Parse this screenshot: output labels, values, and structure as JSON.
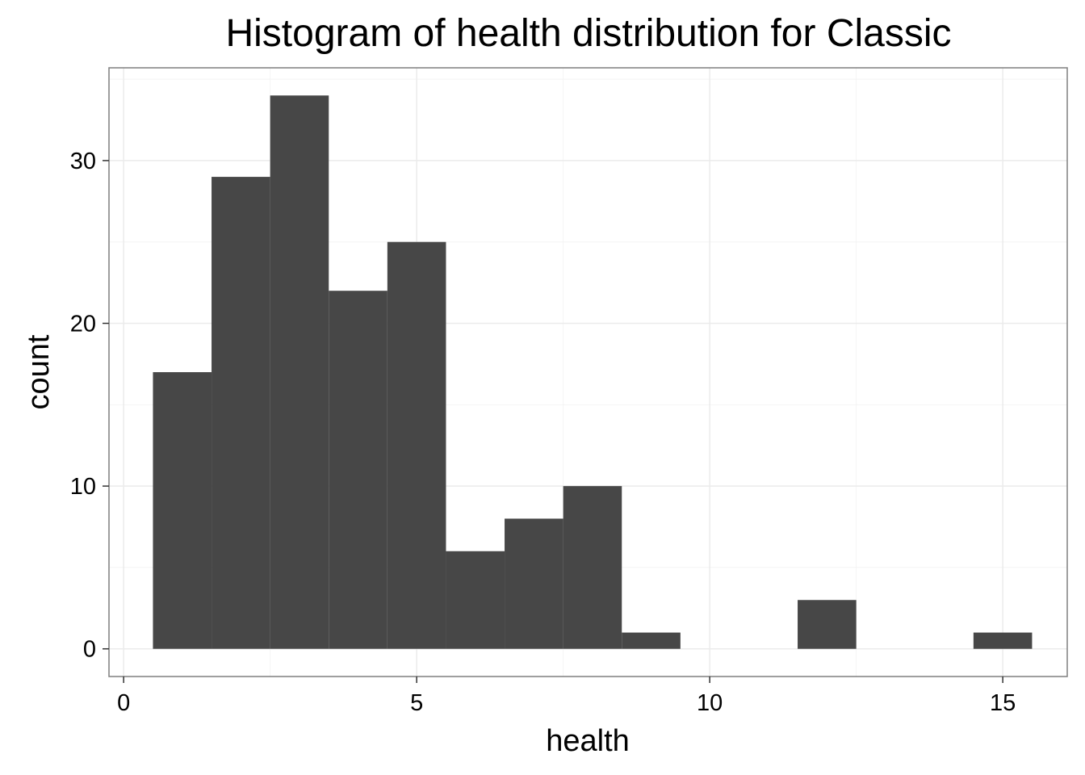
{
  "chart_data": {
    "type": "bar",
    "title": "Histogram of health distribution for Classic",
    "xlabel": "health",
    "ylabel": "count",
    "x_ticks": [
      0,
      5,
      10,
      15
    ],
    "y_ticks": [
      0,
      10,
      20,
      30
    ],
    "xlim": [
      -0.25,
      16.1
    ],
    "ylim": [
      -1.7,
      35.7
    ],
    "bin_width": 1,
    "bins": [
      {
        "center": 1,
        "count": 17
      },
      {
        "center": 2,
        "count": 29
      },
      {
        "center": 3,
        "count": 34
      },
      {
        "center": 4,
        "count": 22
      },
      {
        "center": 5,
        "count": 25
      },
      {
        "center": 6,
        "count": 6
      },
      {
        "center": 7,
        "count": 8
      },
      {
        "center": 8,
        "count": 10
      },
      {
        "center": 9,
        "count": 1
      },
      {
        "center": 10,
        "count": 0
      },
      {
        "center": 11,
        "count": 0
      },
      {
        "center": 12,
        "count": 3
      },
      {
        "center": 13,
        "count": 0
      },
      {
        "center": 14,
        "count": 0
      },
      {
        "center": 15,
        "count": 1
      }
    ],
    "bar_color": "#474747",
    "grid": true,
    "grid_color": "#ebebeb",
    "panel_border_color": "#7f7f7f",
    "legend": "none"
  }
}
